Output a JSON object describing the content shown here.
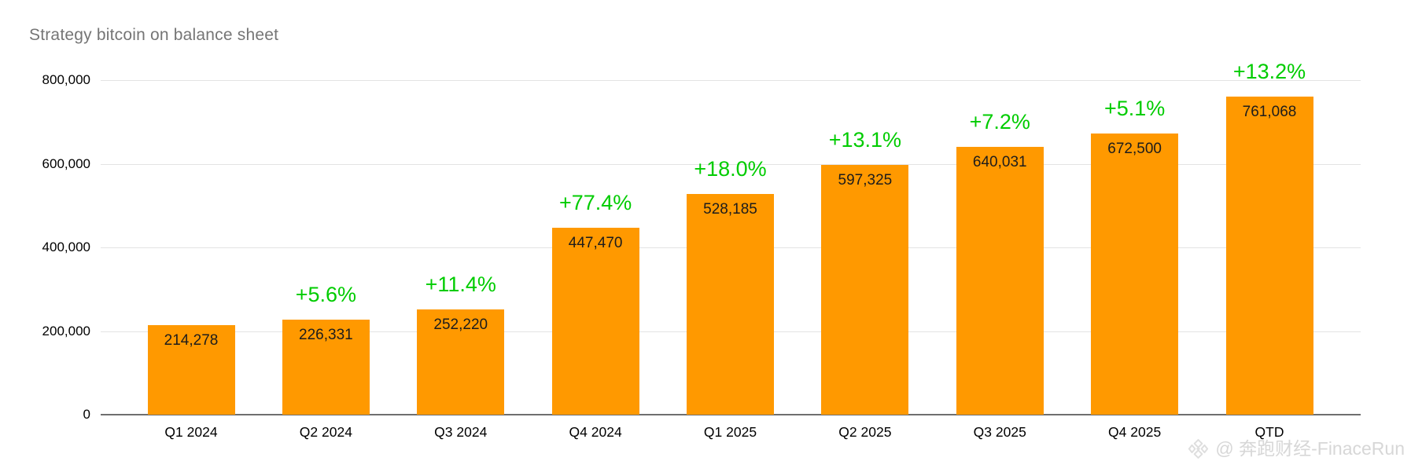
{
  "header": {
    "title": "Strategy bitcoin on balance sheet"
  },
  "watermark": {
    "text": "@ 奔跑财经-FinaceRun",
    "icon": "diamond-lattice-logo-icon"
  },
  "colors": {
    "bar": "#ff9900",
    "percent_label": "#00cc00",
    "title": "#757575",
    "gridline": "#e3e3e3",
    "axis_line": "#6f6f6f",
    "value_label": "#1c1c1c",
    "watermark": "#d7d7d7"
  },
  "chart_data": {
    "type": "bar",
    "title": "Strategy bitcoin on balance sheet",
    "categories": [
      "Q1 2024",
      "Q2 2024",
      "Q3 2024",
      "Q4 2024",
      "Q1 2025",
      "Q2 2025",
      "Q3 2025",
      "Q4 2025",
      "QTD"
    ],
    "values": [
      214278,
      226331,
      252220,
      447470,
      528185,
      597325,
      640031,
      672500,
      761068
    ],
    "value_labels": [
      "214,278",
      "226,331",
      "252,220",
      "447,470",
      "528,185",
      "597,325",
      "640,031",
      "672,500",
      "761,068"
    ],
    "pct_change_labels": [
      null,
      "+5.6%",
      "+11.4%",
      "+77.4%",
      "+18.0%",
      "+13.1%",
      "+7.2%",
      "+5.1%",
      "+13.2%"
    ],
    "xlabel": "",
    "ylabel": "",
    "ylim": [
      0,
      800000
    ],
    "yticks": [
      0,
      200000,
      400000,
      600000,
      800000
    ],
    "ytick_labels": [
      "0",
      "200,000",
      "400,000",
      "600,000",
      "800,000"
    ],
    "grid": true,
    "legend": false,
    "value_label_position": "inside-top",
    "pct_label_position": "above-bar"
  }
}
